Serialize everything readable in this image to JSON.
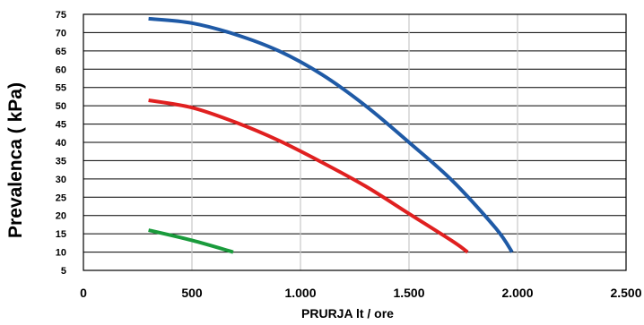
{
  "chart_data": {
    "type": "line",
    "title": "",
    "xlabel": "PRURJA  lt / ore",
    "ylabel": "Prevalenca ( kPa)",
    "xlim": [
      0,
      2500
    ],
    "ylim": [
      5,
      75
    ],
    "x_ticks": [
      {
        "value": 0,
        "label": "0"
      },
      {
        "value": 500,
        "label": "500"
      },
      {
        "value": 1000,
        "label": "1.000"
      },
      {
        "value": 1500,
        "label": "1.500"
      },
      {
        "value": 2000,
        "label": "2.000"
      },
      {
        "value": 2500,
        "label": "2.500"
      }
    ],
    "y_ticks": [
      {
        "value": 5,
        "label": "5"
      },
      {
        "value": 10,
        "label": "10"
      },
      {
        "value": 15,
        "label": "15"
      },
      {
        "value": 20,
        "label": "20"
      },
      {
        "value": 25,
        "label": "25"
      },
      {
        "value": 30,
        "label": "30"
      },
      {
        "value": 35,
        "label": "35"
      },
      {
        "value": 40,
        "label": "40"
      },
      {
        "value": 45,
        "label": "45"
      },
      {
        "value": 50,
        "label": "50"
      },
      {
        "value": 55,
        "label": "55"
      },
      {
        "value": 60,
        "label": "60"
      },
      {
        "value": 65,
        "label": "65"
      },
      {
        "value": 70,
        "label": "70"
      },
      {
        "value": 75,
        "label": "75"
      }
    ],
    "grid": {
      "horizontal": true,
      "vertical": true
    },
    "series": [
      {
        "color": "#1f5aa6",
        "points": [
          {
            "x": 300,
            "y": 73.8
          },
          {
            "x": 500,
            "y": 72.6
          },
          {
            "x": 700,
            "y": 69.5
          },
          {
            "x": 900,
            "y": 65.0
          },
          {
            "x": 1100,
            "y": 58.5
          },
          {
            "x": 1300,
            "y": 50.0
          },
          {
            "x": 1500,
            "y": 40.0
          },
          {
            "x": 1700,
            "y": 29.5
          },
          {
            "x": 1900,
            "y": 16.5
          },
          {
            "x": 1975,
            "y": 10.0
          }
        ]
      },
      {
        "color": "#e02020",
        "points": [
          {
            "x": 300,
            "y": 51.5
          },
          {
            "x": 500,
            "y": 49.5
          },
          {
            "x": 700,
            "y": 45.5
          },
          {
            "x": 900,
            "y": 40.5
          },
          {
            "x": 1100,
            "y": 34.5
          },
          {
            "x": 1300,
            "y": 28.0
          },
          {
            "x": 1500,
            "y": 20.5
          },
          {
            "x": 1700,
            "y": 13.0
          },
          {
            "x": 1770,
            "y": 10.0
          }
        ]
      },
      {
        "color": "#1a9b3c",
        "points": [
          {
            "x": 300,
            "y": 16.0
          },
          {
            "x": 500,
            "y": 13.2
          },
          {
            "x": 690,
            "y": 10.0
          }
        ]
      }
    ]
  }
}
